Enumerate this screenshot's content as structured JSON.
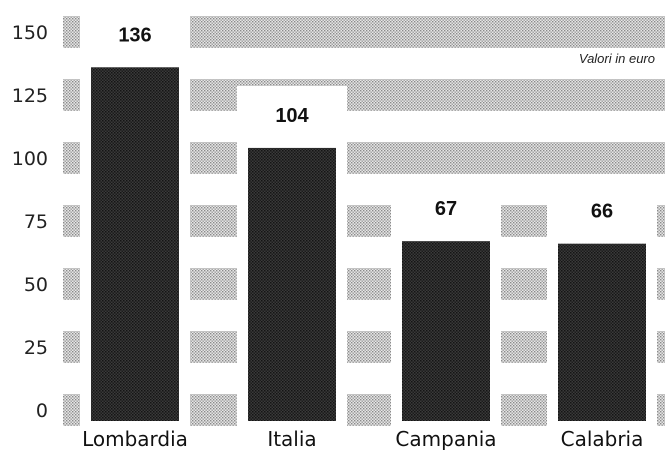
{
  "chart_data": {
    "type": "bar",
    "title": "",
    "xlabel": "",
    "ylabel": "",
    "note": "Valori in euro",
    "categories": [
      "Lombardia",
      "Italia",
      "Campania",
      "Calabria"
    ],
    "values": [
      136,
      104,
      67,
      66
    ],
    "value_labels": [
      "136",
      "104",
      "67",
      "66"
    ],
    "yticks": [
      0,
      25,
      50,
      75,
      100,
      125,
      150
    ],
    "ylim": [
      0,
      150
    ],
    "grid": true,
    "legend": "none",
    "colors": {
      "bar": "#2e2e2e",
      "band": "#d4d4d4",
      "background": "#ffffff"
    }
  }
}
